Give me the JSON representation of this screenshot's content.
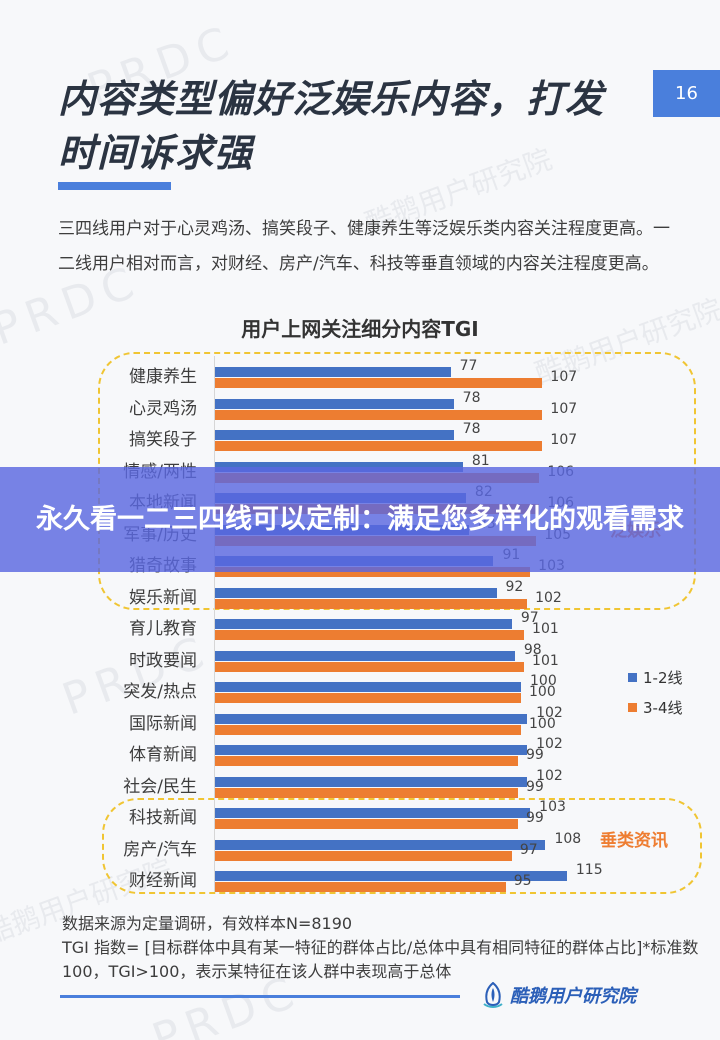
{
  "header": {
    "title": "内容类型偏好泛娱乐内容，打发时间诉求强",
    "page_number": "16"
  },
  "description": "三四线用户对于心灵鸡汤、搞笑段子、健康养生等泛娱乐类内容关注程度更高。一二线用户相对而言，对财经、房产/汽车、科技等垂直领域的内容关注程度更高。",
  "groups": {
    "entertainment_label": "泛娱乐",
    "vertical_label": "垂类资讯"
  },
  "legend": [
    {
      "label": "1-2线",
      "color": "#4472c4"
    },
    {
      "label": "3-4线",
      "color": "#ed7d31"
    }
  ],
  "chart_data": {
    "type": "bar",
    "orientation": "horizontal",
    "title": "用户上网关注细分内容TGI",
    "xlabel": "",
    "ylabel": "",
    "grid": false,
    "legend_position": "right",
    "categories": [
      "健康养生",
      "心灵鸡汤",
      "搞笑段子",
      "情感/两性",
      "本地新闻",
      "军事/历史",
      "猎奇故事",
      "娱乐新闻",
      "育儿教育",
      "时政要闻",
      "突发/热点",
      "国际新闻",
      "体育新闻",
      "社会/民生",
      "科技新闻",
      "房产/汽车",
      "财经新闻"
    ],
    "series": [
      {
        "name": "1-2线",
        "color": "#4472c4",
        "values": [
          77,
          78,
          78,
          81,
          82,
          83,
          91,
          92,
          97,
          98,
          100,
          102,
          102,
          102,
          103,
          108,
          115
        ]
      },
      {
        "name": "3-4线",
        "color": "#ed7d31",
        "values": [
          107,
          107,
          107,
          106,
          106,
          105,
          103,
          102,
          101,
          101,
          100,
          100,
          99,
          99,
          99,
          97,
          95
        ]
      }
    ],
    "annotations": [
      "泛娱乐",
      "垂类资讯"
    ]
  },
  "footnote": {
    "line1": "数据来源为定量调研，有效样本N=8190",
    "line2": "TGI 指数= [目标群体中具有某一特征的群体占比/总体中具有相同特征的群体占比]*标准数100，TGI>100，表示某特征在该人群中表现高于总体"
  },
  "brand": "酷鹅用户研究院",
  "watermarks": [
    "PRDC",
    "酷鹅用户研究院"
  ],
  "banner": {
    "text": "永久看一二三四线可以定制：满足您多样化的观看需求"
  }
}
